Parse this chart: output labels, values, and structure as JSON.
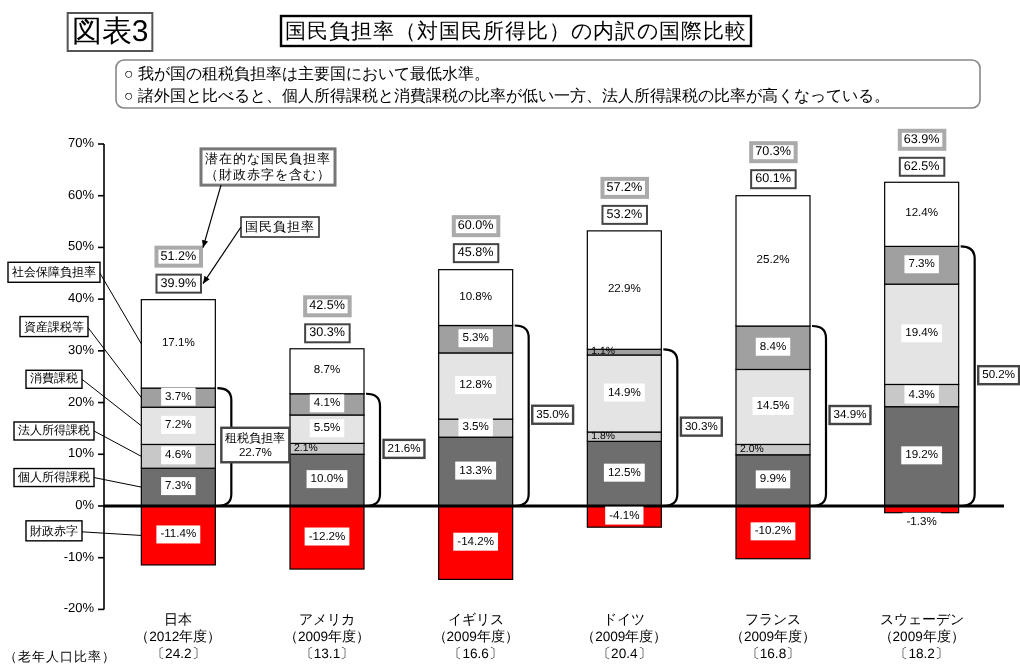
{
  "chart_data": {
    "type": "bar",
    "stacked": true,
    "title": "国民負担率（対国民所得比）の内訳の国際比較",
    "annotations": [
      "図表3",
      "○ 我が国の租税負担率は主要国において最低水準。",
      "○ 諸外国と比べると、個人所得課税と消費課税の比率が低い一方、法人所得課税の比率が高くなっている。",
      "潜在的な国民負担率（財政赤字を含む）",
      "国民負担率",
      "（老年人口比率）",
      "51.2%",
      "42.5%",
      "60.0%",
      "57.2%",
      "70.3%",
      "63.9%",
      "租税負担率22.7%",
      "21.6%",
      "35.0%",
      "30.3%",
      "34.9%",
      "50.2%",
      {
        "text": "39.9%",
        "x": "日本（2012年度）〔24.2〕",
        "y": 39.9
      },
      {
        "text": "30.3%",
        "x": "アメリカ（2009年度）〔13.1〕",
        "y": 30.3
      },
      {
        "text": "45.8%",
        "x": "イギリス（2009年度）〔16.6〕",
        "y": 45.8
      },
      {
        "text": "53.2%",
        "x": "ドイツ（2009年度）〔20.4〕",
        "y": 53.2
      },
      {
        "text": "60.1%",
        "x": "フランス（2009年度）〔16.8〕",
        "y": 60.1
      },
      {
        "text": "62.5%",
        "x": "スウェーデン（2009年度）〔18.2〕",
        "y": 62.5
      }
    ],
    "categories": [
      "日本（2012年度）〔24.2〕",
      "アメリカ（2009年度）〔13.1〕",
      "イギリス（2009年度）〔16.6〕",
      "ドイツ（2009年度）〔20.4〕",
      "フランス（2009年度）〔16.8〕",
      "スウェーデン（2009年度）〔18.2〕"
    ],
    "series": [
      {
        "name": "個人所得課税",
        "color": "#6e6e6e",
        "values": [
          7.3,
          10.0,
          13.3,
          12.5,
          9.9,
          19.2
        ],
        "value_labels": [
          "7.3%",
          "10.0%",
          "13.3%",
          "12.5%",
          "9.9%",
          "19.2%"
        ]
      },
      {
        "name": "法人所得課税",
        "color": "#c8c8c8",
        "values": [
          4.6,
          2.1,
          3.5,
          1.8,
          2.0,
          4.3
        ],
        "value_labels": [
          "4.6%",
          "2.1%",
          "3.5%",
          "1.8%",
          "2.0%",
          "4.3%"
        ]
      },
      {
        "name": "消費課税",
        "color": "#e4e4e4",
        "values": [
          7.2,
          5.5,
          12.8,
          14.9,
          14.5,
          19.4
        ],
        "value_labels": [
          "7.2%",
          "5.5%",
          "12.8%",
          "14.9%",
          "14.5%",
          "19.4%"
        ]
      },
      {
        "name": "資産課税等",
        "color": "#a0a0a0",
        "values": [
          3.7,
          4.1,
          5.3,
          1.1,
          8.4,
          7.3
        ],
        "value_labels": [
          "3.7%",
          "4.1%",
          "5.3%",
          "1.1%",
          "8.4%",
          "7.3%"
        ]
      },
      {
        "name": "社会保障負担率",
        "color": "#ffffff",
        "values": [
          17.1,
          8.7,
          10.8,
          22.9,
          25.2,
          12.4
        ],
        "value_labels": [
          "17.1%",
          "8.7%",
          "10.8%",
          "22.9%",
          "25.2%",
          "12.4%"
        ]
      },
      {
        "name": "財政赤字",
        "color": "#ff0000",
        "values": [
          -11.4,
          -12.2,
          -14.2,
          -4.1,
          -10.2,
          -1.3
        ],
        "value_labels": [
          "-11.4%",
          "-12.2%",
          "-14.2%",
          "-4.1%",
          "-10.2%",
          "-1.3%"
        ]
      }
    ],
    "ylim": [
      -20,
      70
    ],
    "yticks": [
      {
        "value": -20,
        "label": "-20%"
      },
      {
        "value": -10,
        "label": "-10%"
      },
      {
        "value": 0,
        "label": "0%"
      },
      {
        "value": 10,
        "label": "10%"
      },
      {
        "value": 20,
        "label": "20%"
      },
      {
        "value": 30,
        "label": "30%"
      },
      {
        "value": 40,
        "label": "40%"
      },
      {
        "value": 50,
        "label": "50%"
      },
      {
        "value": 60,
        "label": "60%"
      },
      {
        "value": 70,
        "label": "70%"
      }
    ],
    "legend": "left"
  }
}
